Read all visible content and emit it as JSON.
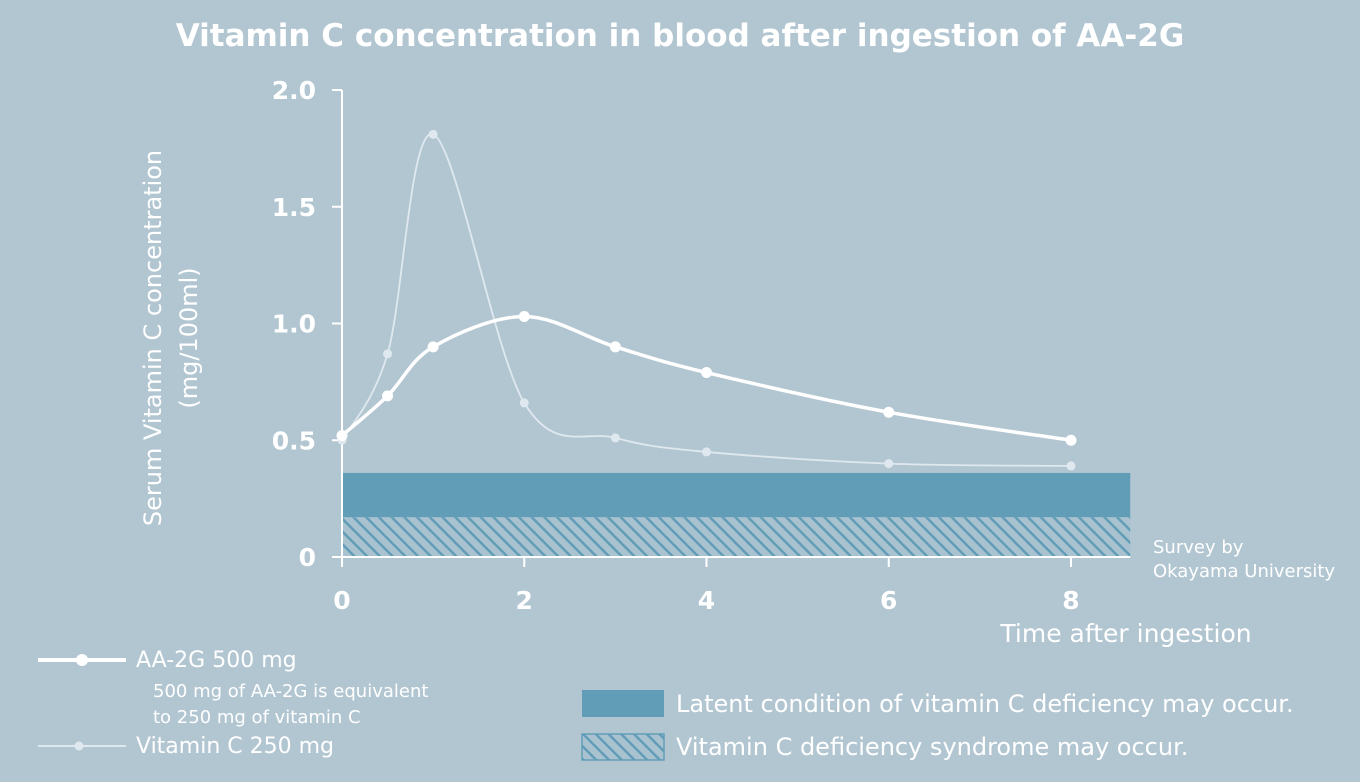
{
  "chart_data": {
    "type": "line",
    "title": "Vitamin C concentration in blood after ingestion of AA-2G",
    "ylabel_line1": "Serum Vitamin C concentration",
    "ylabel_line2": "(mg/100ml)",
    "xlabel": "Time after ingestion",
    "ylim": [
      0,
      2.0
    ],
    "xlim": [
      0,
      8
    ],
    "y_ticks": [
      {
        "value": 0,
        "label": "0"
      },
      {
        "value": 0.5,
        "label": "0.5"
      },
      {
        "value": 1.0,
        "label": "1.0"
      },
      {
        "value": 1.5,
        "label": "1.5"
      },
      {
        "value": 2.0,
        "label": "2.0"
      }
    ],
    "x_ticks": [
      {
        "value": 0,
        "label": "0"
      },
      {
        "value": 2,
        "label": "2"
      },
      {
        "value": 4,
        "label": "4"
      },
      {
        "value": 6,
        "label": "6"
      },
      {
        "value": 8,
        "label": "8"
      }
    ],
    "series": [
      {
        "name": "AA-2G 500 mg",
        "note_line1": "500 mg of AA-2G is equivalent",
        "note_line2": "to 250 mg of vitamin C",
        "color": "#ffffff",
        "x": [
          0,
          0.5,
          1,
          2,
          3,
          4,
          6,
          8
        ],
        "values": [
          0.52,
          0.69,
          0.9,
          1.03,
          0.9,
          0.79,
          0.62,
          0.5
        ]
      },
      {
        "name": "Vitamin C 250 mg",
        "color": "#dfe8ee",
        "x": [
          0,
          0.5,
          1,
          2,
          3,
          4,
          6,
          8
        ],
        "values": [
          0.5,
          0.87,
          1.81,
          0.66,
          0.51,
          0.45,
          0.4,
          0.39
        ]
      }
    ],
    "bands": [
      {
        "name": "Latent condition of vitamin C deficiency may occur.",
        "from": 0.17,
        "to": 0.36,
        "color": "#629db8",
        "pattern": "solid"
      },
      {
        "name": "Vitamin C deficiency syndrome may occur.",
        "from": 0,
        "to": 0.17,
        "color": "#629db8",
        "pattern": "hatched"
      }
    ],
    "band_x_end": 8.65,
    "source_line1": "Survey by",
    "source_line2": "Okayama University",
    "colors": {
      "background": "#b2c6d2",
      "text": "#ffffff",
      "band": "#629db8"
    }
  }
}
